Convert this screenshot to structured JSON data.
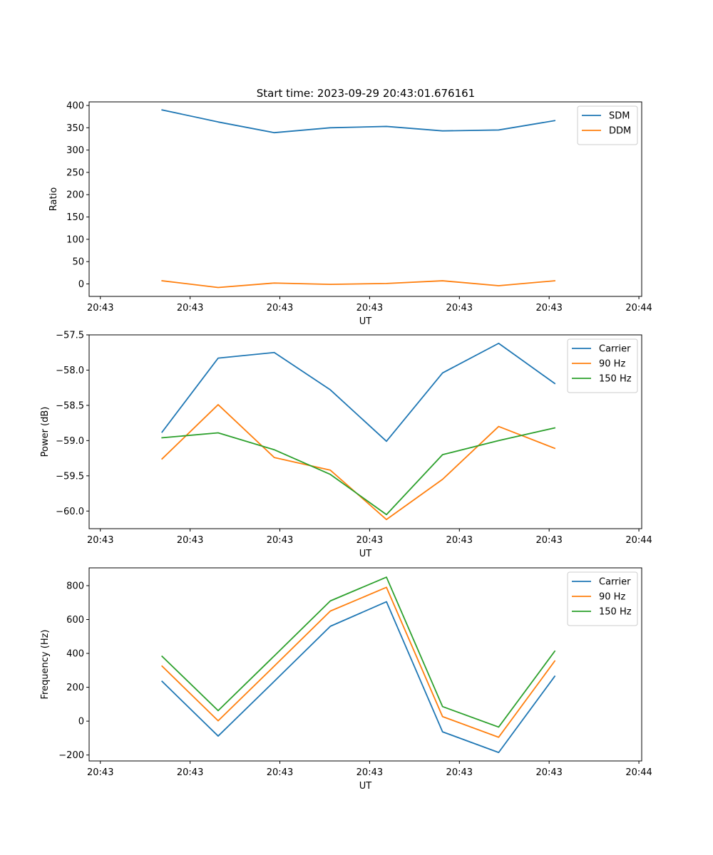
{
  "figure_title": "Start time: 2023-09-29 20:43:01.676161",
  "chart_data": [
    {
      "type": "line",
      "title": "Start time: 2023-09-29 20:43:01.676161",
      "xlabel": "UT",
      "ylabel": "Ratio",
      "x": [
        1.1,
        2.1,
        3.1,
        4.1,
        5.1,
        6.1,
        7.1,
        8.1
      ],
      "x_tick_values": [
        0,
        1.6,
        3.2,
        4.8,
        6.4,
        8.0,
        9.6
      ],
      "x_tick_labels": [
        "20:43",
        "20:43",
        "20:43",
        "20:43",
        "20:43",
        "20:43",
        "20:44"
      ],
      "xlim": [
        -0.2,
        9.65
      ],
      "ylim": [
        -28,
        408
      ],
      "y_ticks": [
        0,
        50,
        100,
        150,
        200,
        250,
        300,
        350,
        400
      ],
      "y_tick_labels": [
        "0",
        "50",
        "100",
        "150",
        "200",
        "250",
        "300",
        "350",
        "400"
      ],
      "legend_position": "top-right",
      "series": [
        {
          "name": "SDM",
          "color": "#1f77b4",
          "values": [
            390,
            363,
            339,
            350,
            353,
            343,
            345,
            366
          ]
        },
        {
          "name": "DDM",
          "color": "#ff7f0e",
          "values": [
            7,
            -8,
            2,
            -1,
            1,
            7,
            -4,
            7
          ]
        }
      ]
    },
    {
      "type": "line",
      "title": "",
      "xlabel": "UT",
      "ylabel": "Power (dB)",
      "x": [
        1.1,
        2.1,
        3.1,
        4.1,
        5.1,
        6.1,
        7.1,
        8.1
      ],
      "x_tick_values": [
        0,
        1.6,
        3.2,
        4.8,
        6.4,
        8.0,
        9.6
      ],
      "x_tick_labels": [
        "20:43",
        "20:43",
        "20:43",
        "20:43",
        "20:43",
        "20:43",
        "20:44"
      ],
      "xlim": [
        -0.2,
        9.65
      ],
      "ylim": [
        -60.25,
        -57.5
      ],
      "y_ticks": [
        -60.0,
        -59.5,
        -59.0,
        -58.5,
        -58.0,
        -57.5
      ],
      "y_tick_labels": [
        "−60.0",
        "−59.5",
        "−59.0",
        "−58.5",
        "−58.0",
        "−57.5"
      ],
      "legend_position": "top-right",
      "series": [
        {
          "name": "Carrier",
          "color": "#1f77b4",
          "values": [
            -58.88,
            -57.83,
            -57.75,
            -58.28,
            -59.01,
            -58.04,
            -57.62,
            -58.19
          ]
        },
        {
          "name": "90 Hz",
          "color": "#ff7f0e",
          "values": [
            -59.26,
            -58.49,
            -59.24,
            -59.42,
            -60.12,
            -59.55,
            -58.8,
            -59.11
          ]
        },
        {
          "name": "150 Hz",
          "color": "#2ca02c",
          "values": [
            -58.96,
            -58.89,
            -59.13,
            -59.48,
            -60.05,
            -59.2,
            -59.0,
            -58.82
          ]
        }
      ]
    },
    {
      "type": "line",
      "title": "",
      "xlabel": "UT",
      "ylabel": "Frequency (Hz)",
      "x": [
        1.1,
        2.1,
        3.1,
        4.1,
        5.1,
        6.1,
        7.1,
        8.1
      ],
      "x_tick_values": [
        0,
        1.6,
        3.2,
        4.8,
        6.4,
        8.0,
        9.6
      ],
      "x_tick_labels": [
        "20:43",
        "20:43",
        "20:43",
        "20:43",
        "20:43",
        "20:43",
        "20:44"
      ],
      "xlim": [
        -0.2,
        9.65
      ],
      "ylim": [
        -235,
        905
      ],
      "y_ticks": [
        -200,
        0,
        200,
        400,
        600,
        800
      ],
      "y_tick_labels": [
        "−200",
        "0",
        "200",
        "400",
        "600",
        "800"
      ],
      "legend_position": "top-right",
      "series": [
        {
          "name": "Carrier",
          "color": "#1f77b4",
          "values": [
            235,
            -88,
            235,
            560,
            705,
            -63,
            -185,
            265
          ]
        },
        {
          "name": "90 Hz",
          "color": "#ff7f0e",
          "values": [
            325,
            2,
            325,
            650,
            790,
            27,
            -95,
            355
          ]
        },
        {
          "name": "150 Hz",
          "color": "#2ca02c",
          "values": [
            383,
            62,
            385,
            710,
            850,
            86,
            -35,
            413
          ]
        }
      ]
    }
  ]
}
